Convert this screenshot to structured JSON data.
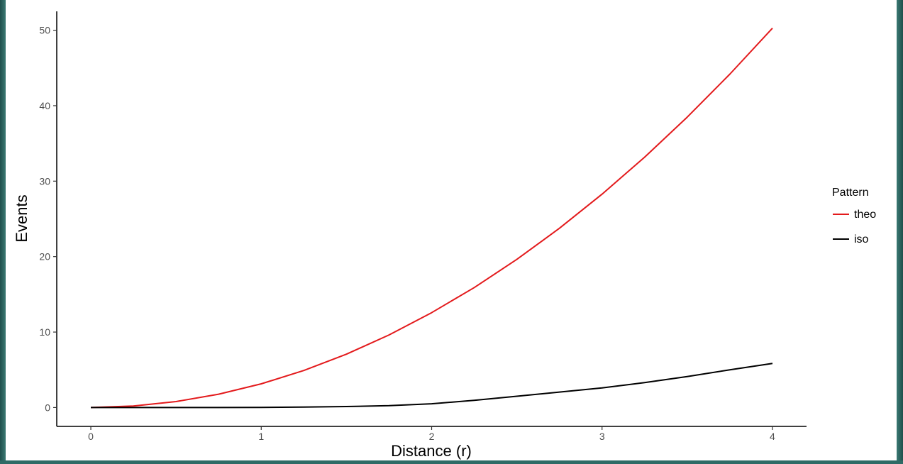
{
  "chart_data": {
    "type": "line",
    "title": "",
    "xlabel": "Distance (r)",
    "ylabel": "Events",
    "xlim": [
      -0.2,
      4.2
    ],
    "ylim": [
      -2.5,
      52.5
    ],
    "xticks": [
      0,
      1,
      2,
      3,
      4
    ],
    "yticks": [
      0,
      10,
      20,
      30,
      40,
      50
    ],
    "grid": false,
    "legend": {
      "title": "Pattern",
      "position": "right"
    },
    "series": [
      {
        "name": "theo",
        "color": "#e31a1c",
        "x": [
          0,
          0.25,
          0.5,
          0.75,
          1,
          1.25,
          1.5,
          1.75,
          2,
          2.25,
          2.5,
          2.75,
          3,
          3.25,
          3.5,
          3.75,
          4
        ],
        "y": [
          0,
          0.2,
          0.79,
          1.77,
          3.14,
          4.91,
          7.07,
          9.62,
          12.57,
          15.9,
          19.63,
          23.76,
          28.27,
          33.18,
          38.48,
          44.18,
          50.27
        ]
      },
      {
        "name": "iso",
        "color": "#000000",
        "x": [
          0,
          0.25,
          0.5,
          0.75,
          1,
          1.25,
          1.5,
          1.75,
          2,
          2.25,
          2.5,
          2.75,
          3,
          3.25,
          3.5,
          3.75,
          4
        ],
        "y": [
          0,
          0,
          0,
          0,
          0.02,
          0.06,
          0.13,
          0.25,
          0.5,
          0.95,
          1.5,
          2.05,
          2.6,
          3.3,
          4.1,
          5.0,
          5.85
        ]
      }
    ]
  }
}
